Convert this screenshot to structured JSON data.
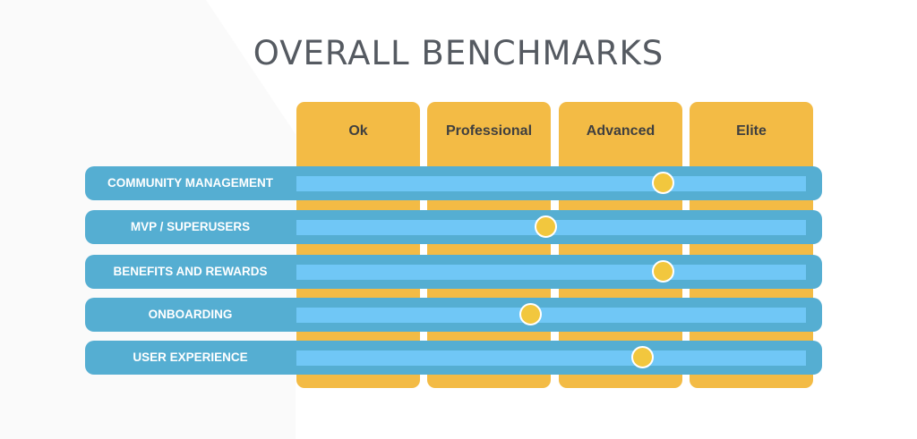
{
  "title": "OVERALL BENCHMARKS",
  "levels": [
    "Ok",
    "Professional",
    "Advanced",
    "Elite"
  ],
  "categories": [
    {
      "label": "COMMUNITY MANAGEMENT",
      "level": 0.72
    },
    {
      "label": "MVP / SUPERUSERS",
      "level": 0.49
    },
    {
      "label": "BENEFITS AND REWARDS",
      "level": 0.72
    },
    {
      "label": "ONBOARDING",
      "level": 0.46
    },
    {
      "label": "USER EXPERIENCE",
      "level": 0.68
    }
  ],
  "colors": {
    "title": "#555a61",
    "column": "#f3bb45",
    "row": "#55aed2",
    "track": "#70c7f6",
    "marker": "#f2c73e"
  }
}
